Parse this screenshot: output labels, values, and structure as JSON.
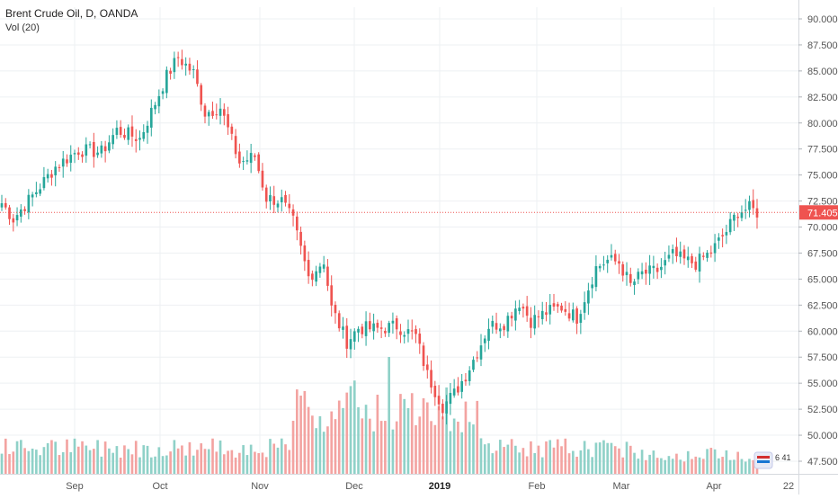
{
  "symbol_title": "Brent Crude Oil, D, OANDA",
  "indicator_label": "Vol (20)",
  "flag_badge": "6 41",
  "colors": {
    "up": "#26a69a",
    "down": "#ef5350",
    "vol_up": "#8fd1c8",
    "vol_down": "#f3a3a1",
    "price_line": "#ef5350",
    "grid": "#eef0f3",
    "axis_text": "#555555"
  },
  "chart_data": {
    "type": "candlestick",
    "title": "Brent Crude Oil, D, OANDA",
    "y_axis_ticks": [
      "47.500",
      "50.000",
      "52.500",
      "55.000",
      "57.500",
      "60.000",
      "62.500",
      "65.000",
      "67.500",
      "70.000",
      "72.500",
      "75.000",
      "77.500",
      "80.000",
      "82.500",
      "85.000",
      "87.500",
      "90.000"
    ],
    "ylim": [
      46.3,
      91.5
    ],
    "x_axis_labels": [
      "Sep",
      "Oct",
      "Nov",
      "Dec",
      "2019",
      "Feb",
      "Mar",
      "Apr",
      "22"
    ],
    "bold_x_labels": [
      "2019"
    ],
    "last_price": "71.405",
    "grid": true,
    "anchors": [
      [
        0,
        72.3
      ],
      [
        3,
        70.8
      ],
      [
        8,
        73.0
      ],
      [
        14,
        75.8
      ],
      [
        20,
        77.4
      ],
      [
        26,
        77.2
      ],
      [
        30,
        79.3
      ],
      [
        36,
        78.5
      ],
      [
        43,
        84.5
      ],
      [
        46,
        86.3
      ],
      [
        50,
        84.8
      ],
      [
        53,
        81.0
      ],
      [
        57,
        81.5
      ],
      [
        62,
        76.2
      ],
      [
        66,
        76.8
      ],
      [
        69,
        72.8
      ],
      [
        73,
        72.5
      ],
      [
        76,
        70.5
      ],
      [
        80,
        65.2
      ],
      [
        84,
        66.8
      ],
      [
        86,
        62.2
      ],
      [
        90,
        59.0
      ],
      [
        93,
        60.3
      ],
      [
        98,
        60.2
      ],
      [
        103,
        60.5
      ],
      [
        108,
        59.5
      ],
      [
        111,
        55.8
      ],
      [
        115,
        52.8
      ],
      [
        118,
        54.0
      ],
      [
        121,
        55.8
      ],
      [
        124,
        58.0
      ],
      [
        127,
        60.5
      ],
      [
        131,
        60.8
      ],
      [
        135,
        62.8
      ],
      [
        138,
        61.0
      ],
      [
        142,
        61.8
      ],
      [
        146,
        62.3
      ],
      [
        150,
        61.3
      ],
      [
        155,
        66.1
      ],
      [
        158,
        66.8
      ],
      [
        161,
        66.6
      ],
      [
        164,
        64.4
      ],
      [
        167,
        65.5
      ],
      [
        171,
        65.8
      ],
      [
        175,
        67.3
      ],
      [
        178,
        66.8
      ],
      [
        181,
        66.5
      ],
      [
        185,
        67.6
      ],
      [
        189,
        69.6
      ],
      [
        192,
        71.5
      ],
      [
        195,
        71.8
      ],
      [
        197,
        71.4
      ]
    ],
    "volume_note": "Vol (20)"
  }
}
